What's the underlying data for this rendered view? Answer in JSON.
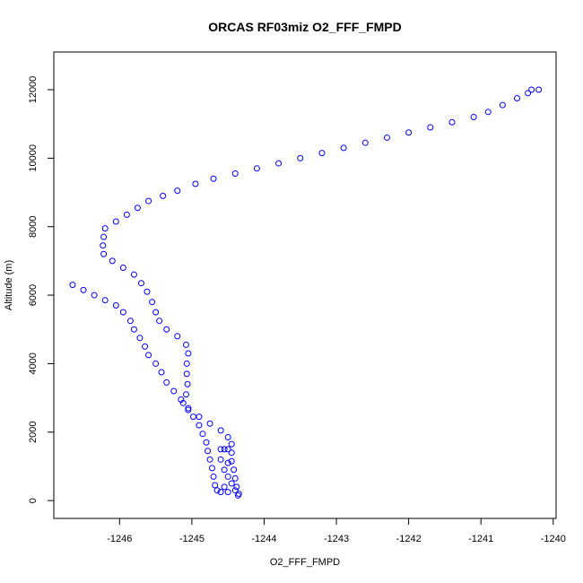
{
  "chart_data": {
    "type": "scatter",
    "title": "ORCAS RF03miz O2_FFF_FMPD",
    "x_label": "O2_FFF_FMPD",
    "y_label": "Altitude (m)",
    "xlim": [
      -1246.91,
      -1239.96
    ],
    "ylim": [
      -520,
      13100
    ],
    "xticks": [
      -1246,
      -1245,
      -1244,
      -1243,
      -1242,
      -1241,
      -1240
    ],
    "yticks": [
      0,
      2000,
      4000,
      6000,
      8000,
      10000,
      12000
    ],
    "series": [
      {
        "color": "#0000ff",
        "x": [
          -1240.2,
          -1240.3,
          -1240.35,
          -1240.5,
          -1240.7,
          -1240.9,
          -1241.1,
          -1241.4,
          -1241.7,
          -1242.0,
          -1242.3,
          -1242.6,
          -1242.9,
          -1243.2,
          -1243.5,
          -1243.8,
          -1244.1,
          -1244.4,
          -1244.7,
          -1244.95,
          -1245.2,
          -1245.4,
          -1245.6,
          -1245.75,
          -1245.9,
          -1246.05,
          -1246.2,
          -1246.22,
          -1246.23,
          -1246.22,
          -1246.1,
          -1245.95,
          -1245.8,
          -1245.7,
          -1245.62,
          -1245.55,
          -1245.5,
          -1245.45,
          -1245.35,
          -1245.2,
          -1245.08,
          -1245.05,
          -1245.07,
          -1245.07,
          -1245.06,
          -1245.08,
          -1245.12,
          -1245.05,
          -1244.9,
          -1244.75,
          -1244.6,
          -1244.5,
          -1244.45,
          -1244.45,
          -1244.45,
          -1244.42,
          -1244.4,
          -1244.38,
          -1244.36,
          -1246.65,
          -1246.5,
          -1246.35,
          -1246.2,
          -1246.05,
          -1245.95,
          -1245.85,
          -1245.8,
          -1245.72,
          -1245.65,
          -1245.6,
          -1245.5,
          -1245.42,
          -1245.35,
          -1245.25,
          -1245.15,
          -1245.05,
          -1244.98,
          -1244.9,
          -1244.85,
          -1244.8,
          -1244.78,
          -1244.75,
          -1244.72,
          -1244.7,
          -1244.68,
          -1244.65,
          -1244.6,
          -1244.6,
          -1244.55,
          -1244.5,
          -1244.6,
          -1244.5,
          -1244.55,
          -1244.5,
          -1244.45,
          -1244.55,
          -1244.4,
          -1244.35,
          -1244.5
        ],
        "values": [
          12000,
          12000,
          11900,
          11750,
          11550,
          11350,
          11200,
          11050,
          10900,
          10750,
          10600,
          10450,
          10300,
          10150,
          10000,
          9850,
          9700,
          9550,
          9400,
          9250,
          9050,
          8900,
          8750,
          8550,
          8350,
          8150,
          7950,
          7700,
          7450,
          7200,
          7000,
          6800,
          6600,
          6350,
          6100,
          5800,
          5500,
          5250,
          5000,
          4800,
          4550,
          4300,
          4000,
          3700,
          3400,
          3100,
          2850,
          2650,
          2450,
          2250,
          2050,
          1850,
          1650,
          1400,
          1150,
          900,
          650,
          400,
          150,
          6300,
          6150,
          6000,
          5850,
          5700,
          5500,
          5250,
          5000,
          4750,
          4500,
          4250,
          4000,
          3750,
          3450,
          3200,
          2950,
          2700,
          2450,
          2200,
          1950,
          1700,
          1450,
          1200,
          950,
          700,
          450,
          300,
          250,
          1500,
          1500,
          1500,
          1200,
          1100,
          900,
          700,
          500,
          400,
          300,
          200,
          250
        ]
      }
    ]
  }
}
